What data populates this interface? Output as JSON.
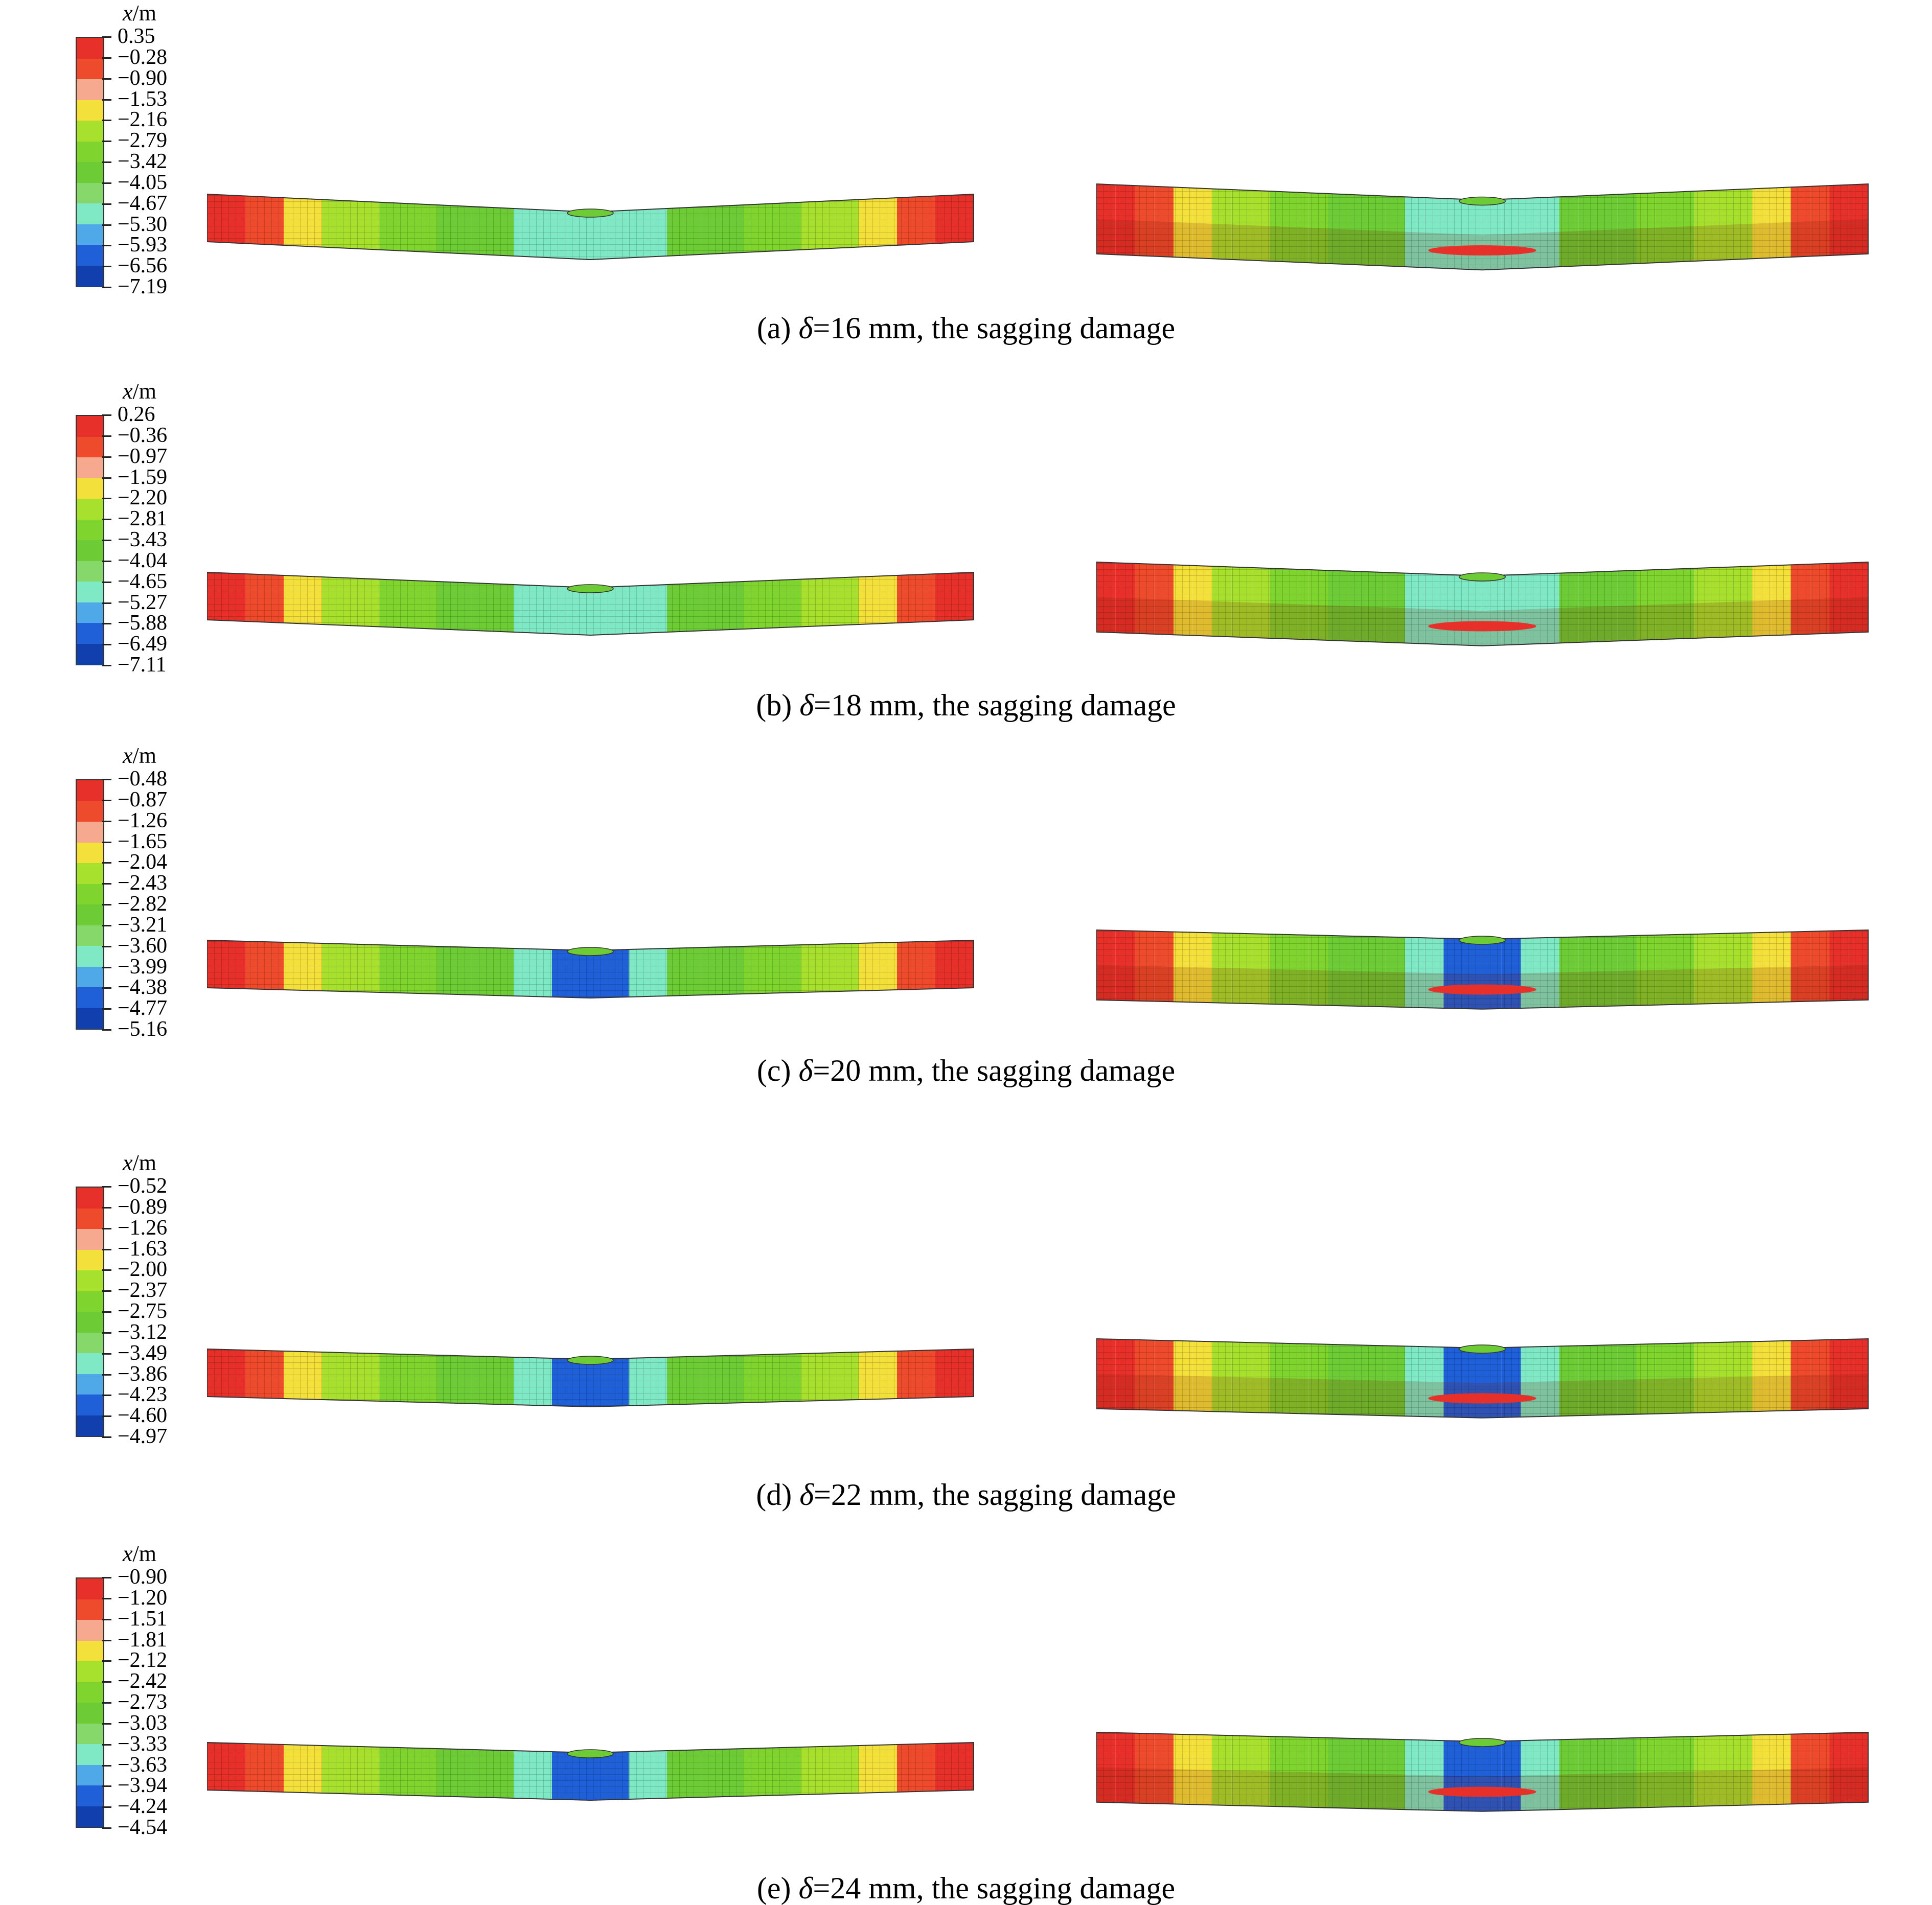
{
  "legend_title_unit": "/m",
  "legend_title_var": "x",
  "colors": [
    "#e8302a",
    "#ee4a2c",
    "#f7a98f",
    "#f4e03a",
    "#a8e02e",
    "#7fd42e",
    "#6dcc35",
    "#86d86a",
    "#7fe8c4",
    "#4fa8e8",
    "#1f5fd8",
    "#123fae"
  ],
  "panels": [
    {
      "id": "a",
      "caption_prefix": "(a) ",
      "delta": "δ",
      "caption_rest": "=16 mm, the sagging damage",
      "legend_values": [
        "0.35",
        "−0.28",
        "−0.90",
        "−1.53",
        "−2.16",
        "−2.79",
        "−3.42",
        "−4.05",
        "−4.67",
        "−5.30",
        "−5.93",
        "−6.56",
        "−7.19"
      ],
      "beam_left_icon": "fem-beam-side-view",
      "beam_right_icon": "fem-beam-perspective-view"
    },
    {
      "id": "b",
      "caption_prefix": "(b) ",
      "delta": "δ",
      "caption_rest": "=18 mm, the sagging damage",
      "legend_values": [
        "0.26",
        "−0.36",
        "−0.97",
        "−1.59",
        "−2.20",
        "−2.81",
        "−3.43",
        "−4.04",
        "−4.65",
        "−5.27",
        "−5.88",
        "−6.49",
        "−7.11"
      ],
      "beam_left_icon": "fem-beam-side-view",
      "beam_right_icon": "fem-beam-perspective-view"
    },
    {
      "id": "c",
      "caption_prefix": "(c) ",
      "delta": "δ",
      "caption_rest": "=20 mm, the sagging damage",
      "legend_values": [
        "−0.48",
        "−0.87",
        "−1.26",
        "−1.65",
        "−2.04",
        "−2.43",
        "−2.82",
        "−3.21",
        "−3.60",
        "−3.99",
        "−4.38",
        "−4.77",
        "−5.16"
      ],
      "beam_left_icon": "fem-beam-side-view",
      "beam_right_icon": "fem-beam-perspective-view"
    },
    {
      "id": "d",
      "caption_prefix": "(d) ",
      "delta": "δ",
      "caption_rest": "=22 mm, the sagging damage",
      "legend_values": [
        "−0.52",
        "−0.89",
        "−1.26",
        "−1.63",
        "−2.00",
        "−2.37",
        "−2.75",
        "−3.12",
        "−3.49",
        "−3.86",
        "−4.23",
        "−4.60",
        "−4.97"
      ],
      "beam_left_icon": "fem-beam-side-view",
      "beam_right_icon": "fem-beam-perspective-view"
    },
    {
      "id": "e",
      "caption_prefix": "(e) ",
      "delta": "δ",
      "caption_rest": "=24 mm, the sagging damage",
      "legend_values": [
        "−0.90",
        "−1.20",
        "−1.51",
        "−1.81",
        "−2.12",
        "−2.42",
        "−2.73",
        "−3.03",
        "−3.33",
        "−3.63",
        "−3.94",
        "−4.24",
        "−4.54"
      ],
      "beam_left_icon": "fem-beam-side-view",
      "beam_right_icon": "fem-beam-perspective-view"
    }
  ]
}
